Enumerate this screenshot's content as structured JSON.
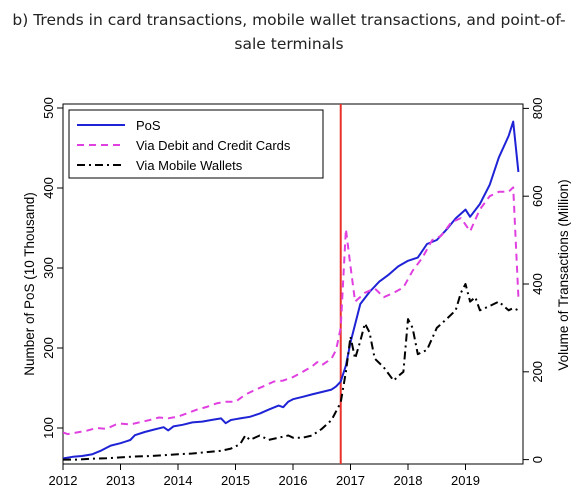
{
  "chart_data": {
    "type": "line",
    "title": "b) Trends in card transactions, mobile wallet transactions, and point-of-sale terminals",
    "ylabel_left": "Number of PoS (10 Thousand)",
    "ylabel_right": "Volume of Transactions (Million)",
    "xlim": [
      2012,
      2020
    ],
    "ylim_left": [
      55,
      505
    ],
    "ylim_right": [
      -10,
      810
    ],
    "xticks": [
      "2012",
      "2013",
      "2014",
      "2015",
      "2016",
      "2017",
      "2018",
      "2019"
    ],
    "yticks_left": [
      "100",
      "200",
      "300",
      "400",
      "500"
    ],
    "yticks_right": [
      "0",
      "200",
      "400",
      "600",
      "800"
    ],
    "vline_x": 2016.83,
    "vline_color": "#e8322a",
    "legend_position": "top-left",
    "series": [
      {
        "name": "PoS",
        "axis": "left",
        "color": "#1f23d6",
        "style": "solid",
        "x": [
          2012.0,
          2012.17,
          2012.33,
          2012.5,
          2012.67,
          2012.83,
          2013.0,
          2013.17,
          2013.25,
          2013.42,
          2013.58,
          2013.75,
          2013.83,
          2013.92,
          2014.08,
          2014.25,
          2014.42,
          2014.58,
          2014.75,
          2014.83,
          2014.92,
          2015.0,
          2015.08,
          2015.25,
          2015.42,
          2015.58,
          2015.75,
          2015.83,
          2015.92,
          2016.0,
          2016.17,
          2016.33,
          2016.5,
          2016.67,
          2016.75,
          2016.83,
          2016.92,
          2017.0,
          2017.17,
          2017.33,
          2017.5,
          2017.67,
          2017.83,
          2018.0,
          2018.17,
          2018.33,
          2018.5,
          2018.67,
          2018.83,
          2019.0,
          2019.08,
          2019.25,
          2019.42,
          2019.58,
          2019.75,
          2019.83,
          2019.92
        ],
        "values": [
          62,
          64,
          65,
          67,
          72,
          78,
          81,
          85,
          91,
          95,
          98,
          101,
          97,
          102,
          104,
          107,
          108,
          110,
          112,
          106,
          110,
          111,
          112,
          114,
          118,
          123,
          128,
          126,
          133,
          136,
          139,
          142,
          145,
          148,
          152,
          158,
          178,
          207,
          255,
          270,
          283,
          292,
          302,
          309,
          313,
          330,
          335,
          348,
          362,
          373,
          364,
          380,
          404,
          438,
          465,
          483,
          420
        ]
      },
      {
        "name": "Via Debit and Credit Cards",
        "axis": "right",
        "color": "#e040e0",
        "style": "dashed",
        "x": [
          2012.0,
          2012.08,
          2012.25,
          2012.42,
          2012.58,
          2012.75,
          2012.92,
          2013.0,
          2013.17,
          2013.33,
          2013.5,
          2013.67,
          2013.83,
          2014.0,
          2014.17,
          2014.33,
          2014.5,
          2014.67,
          2014.83,
          2015.0,
          2015.17,
          2015.33,
          2015.5,
          2015.67,
          2015.83,
          2016.0,
          2016.17,
          2016.33,
          2016.42,
          2016.5,
          2016.67,
          2016.75,
          2016.83,
          2016.92,
          2017.0,
          2017.08,
          2017.25,
          2017.42,
          2017.58,
          2017.75,
          2017.92,
          2018.08,
          2018.25,
          2018.42,
          2018.58,
          2018.75,
          2018.92,
          2019.08,
          2019.25,
          2019.42,
          2019.58,
          2019.75,
          2019.83,
          2019.92
        ],
        "values": [
          62,
          58,
          62,
          66,
          72,
          70,
          80,
          82,
          80,
          85,
          90,
          96,
          94,
          98,
          106,
          114,
          120,
          128,
          132,
          132,
          148,
          158,
          168,
          178,
          180,
          188,
          200,
          212,
          222,
          215,
          230,
          250,
          300,
          525,
          440,
          360,
          380,
          390,
          370,
          380,
          392,
          430,
          460,
          500,
          510,
          540,
          550,
          520,
          570,
          600,
          610,
          610,
          620,
          370
        ]
      },
      {
        "name": "Via Mobile Wallets",
        "axis": "right",
        "color": "#000000",
        "style": "dashdot",
        "x": [
          2012.0,
          2012.25,
          2012.5,
          2012.75,
          2013.0,
          2013.25,
          2013.5,
          2013.75,
          2014.0,
          2014.25,
          2014.5,
          2014.75,
          2014.92,
          2015.0,
          2015.08,
          2015.17,
          2015.25,
          2015.42,
          2015.58,
          2015.75,
          2015.92,
          2016.0,
          2016.17,
          2016.33,
          2016.5,
          2016.67,
          2016.75,
          2016.83,
          2016.92,
          2017.0,
          2017.08,
          2017.17,
          2017.25,
          2017.33,
          2017.42,
          2017.58,
          2017.75,
          2017.83,
          2017.92,
          2018.0,
          2018.08,
          2018.17,
          2018.33,
          2018.5,
          2018.67,
          2018.83,
          2018.92,
          2019.0,
          2019.08,
          2019.17,
          2019.25,
          2019.42,
          2019.58,
          2019.75,
          2019.83,
          2019.92
        ],
        "values": [
          0,
          0,
          2,
          3,
          5,
          7,
          8,
          10,
          12,
          14,
          17,
          20,
          25,
          30,
          35,
          55,
          45,
          55,
          45,
          50,
          55,
          50,
          50,
          55,
          70,
          90,
          110,
          130,
          200,
          280,
          230,
          270,
          310,
          290,
          230,
          210,
          180,
          190,
          200,
          320,
          300,
          240,
          250,
          300,
          320,
          340,
          380,
          400,
          360,
          370,
          340,
          350,
          360,
          340,
          345,
          340
        ]
      }
    ]
  }
}
